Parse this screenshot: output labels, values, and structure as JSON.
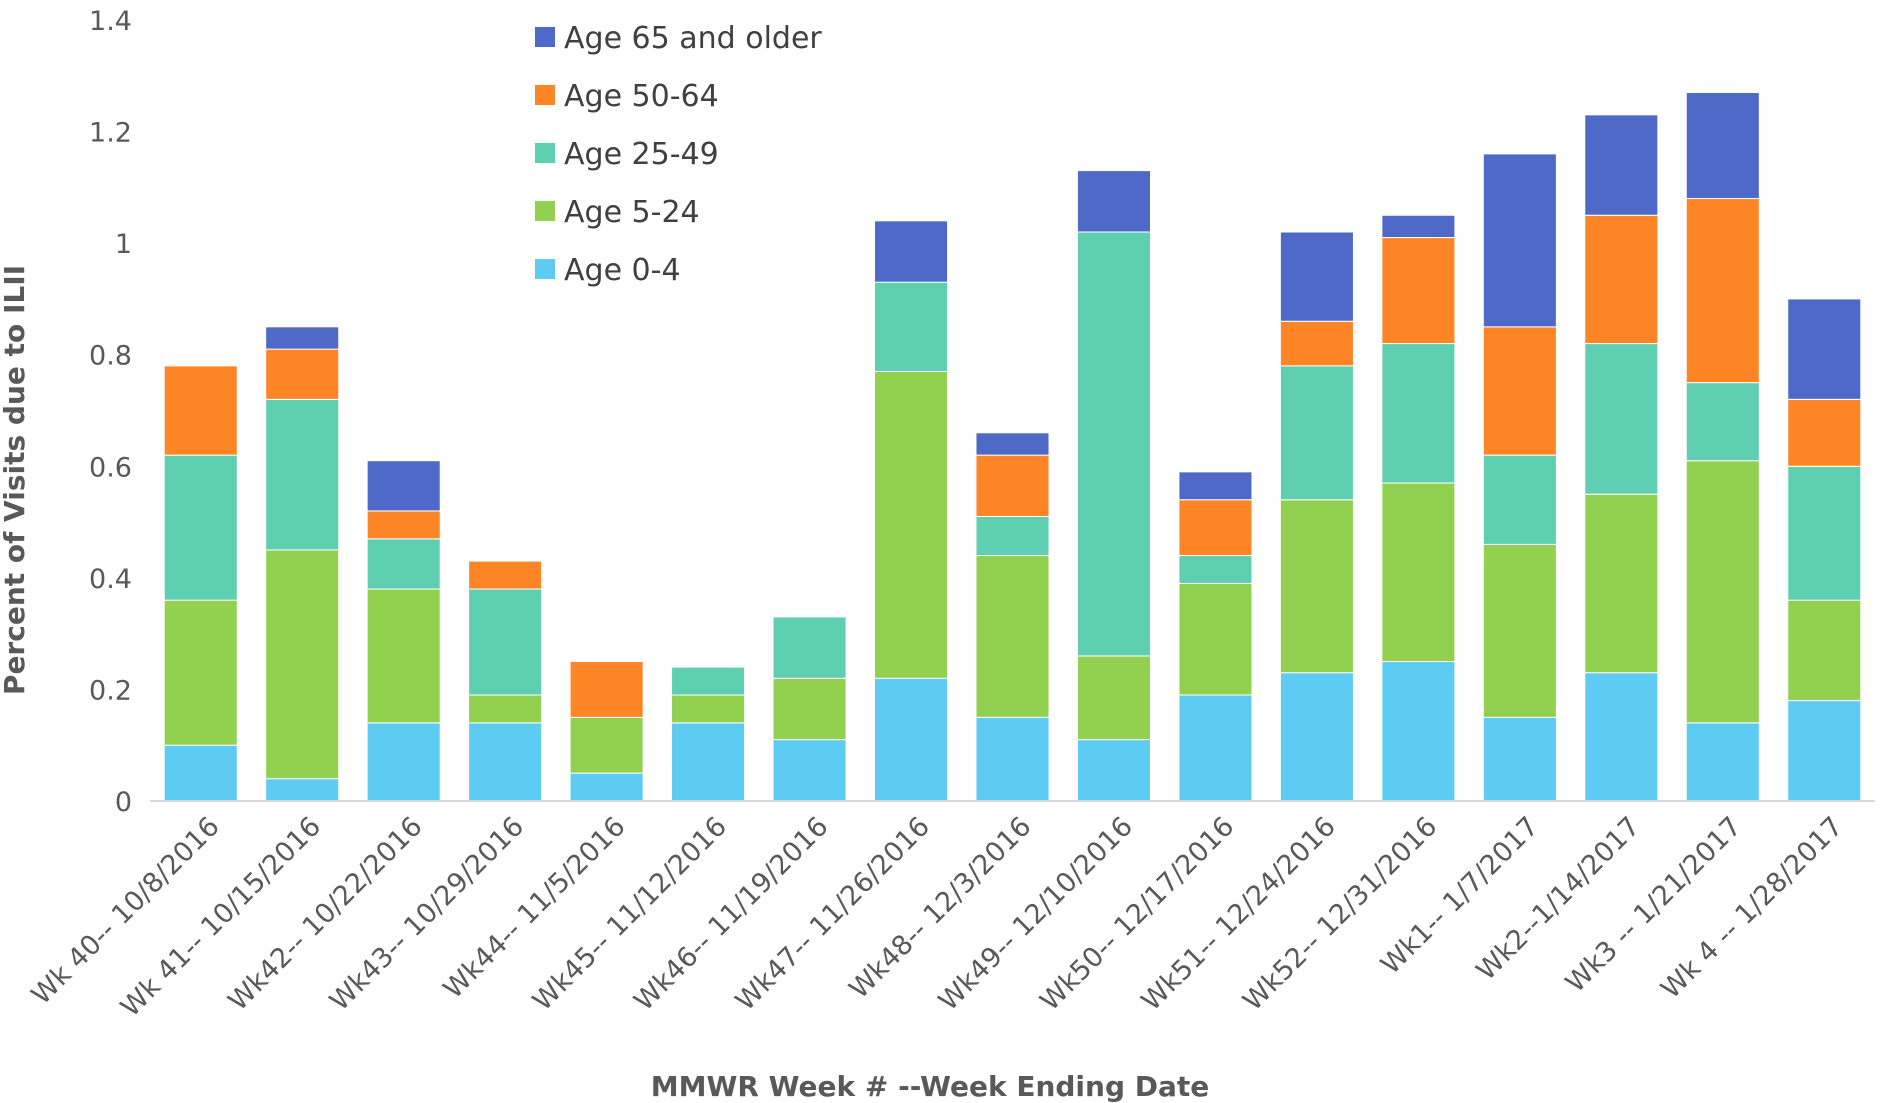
{
  "chart_data": {
    "type": "bar",
    "stacked": true,
    "title": "",
    "xlabel": "MMWR Week # --Week Ending Date",
    "ylabel": "Percent of Visits due to ILII",
    "ylim": [
      0,
      1.4
    ],
    "yticks": [
      "0",
      "0.2",
      "0.4",
      "0.6",
      "0.8",
      "1",
      "1.2",
      "1.4"
    ],
    "grid": false,
    "legend_position": "top-center",
    "categories": [
      "Wk 40-- 10/8/2016",
      "Wk 41-- 10/15/2016",
      "Wk42-- 10/22/2016",
      "Wk43-- 10/29/2016",
      "Wk44-- 11/5/2016",
      "Wk45-- 11/12/2016",
      "Wk46-- 11/19/2016",
      "Wk47-- 11/26/2016",
      "Wk48-- 12/3/2016",
      "Wk49-- 12/10/2016",
      "Wk50-- 12/17/2016",
      "Wk51-- 12/24/2016",
      "Wk52-- 12/31/2016",
      "Wk1-- 1/7/2017",
      "Wk2--1/14/2017",
      "Wk3 -- 1/21/2017",
      "Wk 4 -- 1/28/2017"
    ],
    "series": [
      {
        "name": "Age 0-4",
        "color": "#5ecbf2",
        "values": [
          0.1,
          0.04,
          0.14,
          0.14,
          0.05,
          0.14,
          0.11,
          0.22,
          0.15,
          0.11,
          0.19,
          0.23,
          0.25,
          0.15,
          0.23,
          0.14,
          0.18
        ]
      },
      {
        "name": "Age 5-24",
        "color": "#92d050",
        "values": [
          0.26,
          0.41,
          0.24,
          0.05,
          0.1,
          0.05,
          0.11,
          0.55,
          0.29,
          0.15,
          0.2,
          0.31,
          0.32,
          0.31,
          0.32,
          0.47,
          0.18
        ]
      },
      {
        "name": "Age 25-49",
        "color": "#5ecfb1",
        "values": [
          0.26,
          0.27,
          0.09,
          0.19,
          0.0,
          0.05,
          0.11,
          0.16,
          0.07,
          0.76,
          0.05,
          0.24,
          0.25,
          0.16,
          0.27,
          0.14,
          0.24
        ]
      },
      {
        "name": "Age 50-64",
        "color": "#fd8526",
        "values": [
          0.16,
          0.09,
          0.05,
          0.05,
          0.1,
          0.0,
          0.0,
          0.0,
          0.11,
          0.0,
          0.1,
          0.08,
          0.19,
          0.23,
          0.23,
          0.33,
          0.12
        ]
      },
      {
        "name": "Age 65 and older",
        "color": "#4e69c8",
        "values": [
          0.0,
          0.04,
          0.09,
          0.0,
          0.0,
          0.0,
          0.0,
          0.11,
          0.04,
          0.11,
          0.05,
          0.16,
          0.04,
          0.31,
          0.18,
          0.19,
          0.18
        ]
      }
    ]
  }
}
